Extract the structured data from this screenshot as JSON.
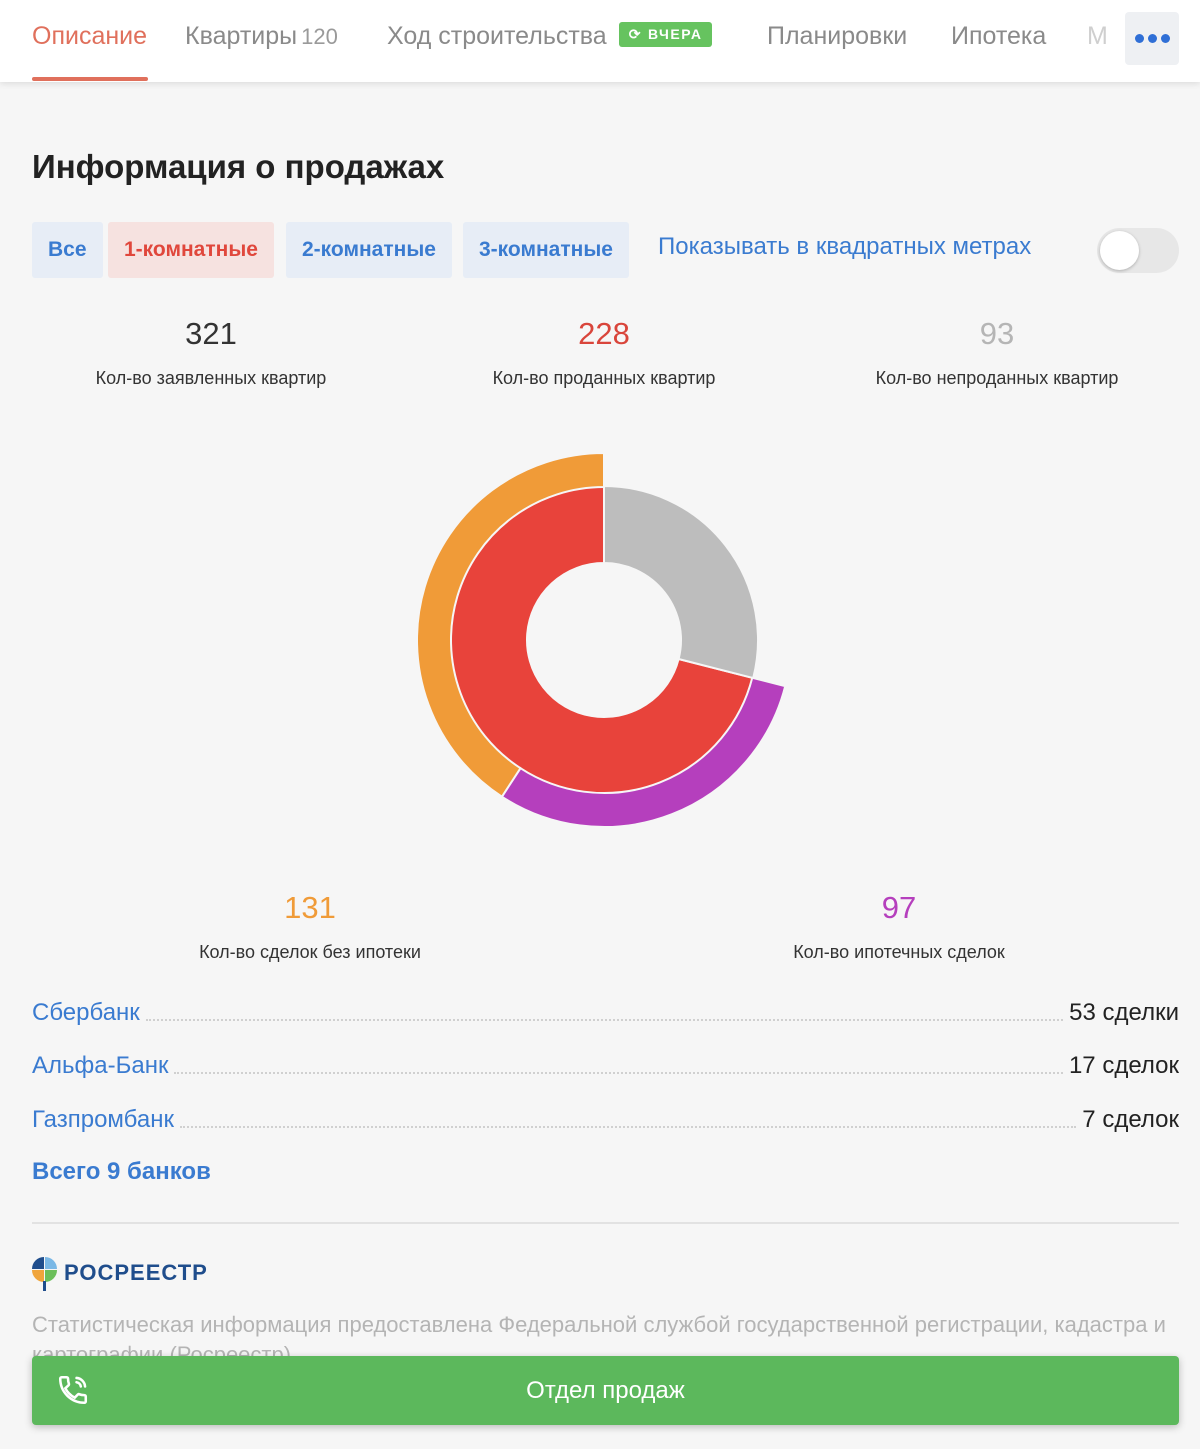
{
  "tabs": {
    "description": "Описание",
    "apartments": "Квартиры",
    "apartments_count": "120",
    "construction": "Ход строительства",
    "construction_badge": "ВЧЕРА",
    "layouts": "Планировки",
    "mortgage": "Ипотека",
    "clipped": "М"
  },
  "title": "Информация о продажах",
  "filters": {
    "all": "Все",
    "one_room": "1-комнатные",
    "two_room": "2-комнатные",
    "three_room": "3-комнатные",
    "active": "1-комнатные",
    "sqm_link": "Показывать в квадратных метрах",
    "sqm_toggle_on": false
  },
  "stats": {
    "declared_value": "321",
    "declared_label": "Кол-во заявленных квартир",
    "sold_value": "228",
    "sold_label": "Кол-во проданных квартир",
    "unsold_value": "93",
    "unsold_label": "Кол-во непроданных квартир",
    "no_mortgage_value": "131",
    "no_mortgage_label": "Кол-во сделок без ипотеки",
    "mortgage_value": "97",
    "mortgage_label": "Кол-во ипотечных сделок"
  },
  "chart_data": {
    "type": "pie",
    "inner_ring": [
      {
        "label": "Кол-во проданных квартир",
        "value": 228,
        "color": "#e8433b"
      },
      {
        "label": "Кол-во непроданных квартир",
        "value": 93,
        "color": "#bdbdbd"
      }
    ],
    "outer_ring": [
      {
        "label": "Кол-во сделок без ипотеки",
        "value": 131,
        "color": "#f09b38"
      },
      {
        "label": "Кол-во ипотечных сделок",
        "value": 97,
        "color": "#b53fbd"
      }
    ],
    "total": 321
  },
  "banks": [
    {
      "name": "Сбербанк",
      "deals": "53 сделки"
    },
    {
      "name": "Альфа-Банк",
      "deals": "17 сделок"
    },
    {
      "name": "Газпромбанк",
      "deals": "7 сделок"
    }
  ],
  "all_banks_link": "Всего 9 банков",
  "rosreestr_logo": "РОСРЕЕСТР",
  "source_text": "Статистическая информация предоставлена Федеральной службой государственной регистрации, кадастра и картографии (Росреестр)",
  "call_button": "Отдел продаж",
  "colors": {
    "accent": "#e0705c",
    "link": "#3a7bd0",
    "sold": "#e8433b",
    "unsold": "#bdbdbd",
    "no_mortgage": "#f09b38",
    "mortgage": "#b53fbd",
    "call": "#5cb85c"
  },
  "icons": {
    "more": "more-dots-icon",
    "refresh": "refresh-icon",
    "phone": "phone-icon",
    "rosreestr": "rosreestr-logo-icon"
  }
}
